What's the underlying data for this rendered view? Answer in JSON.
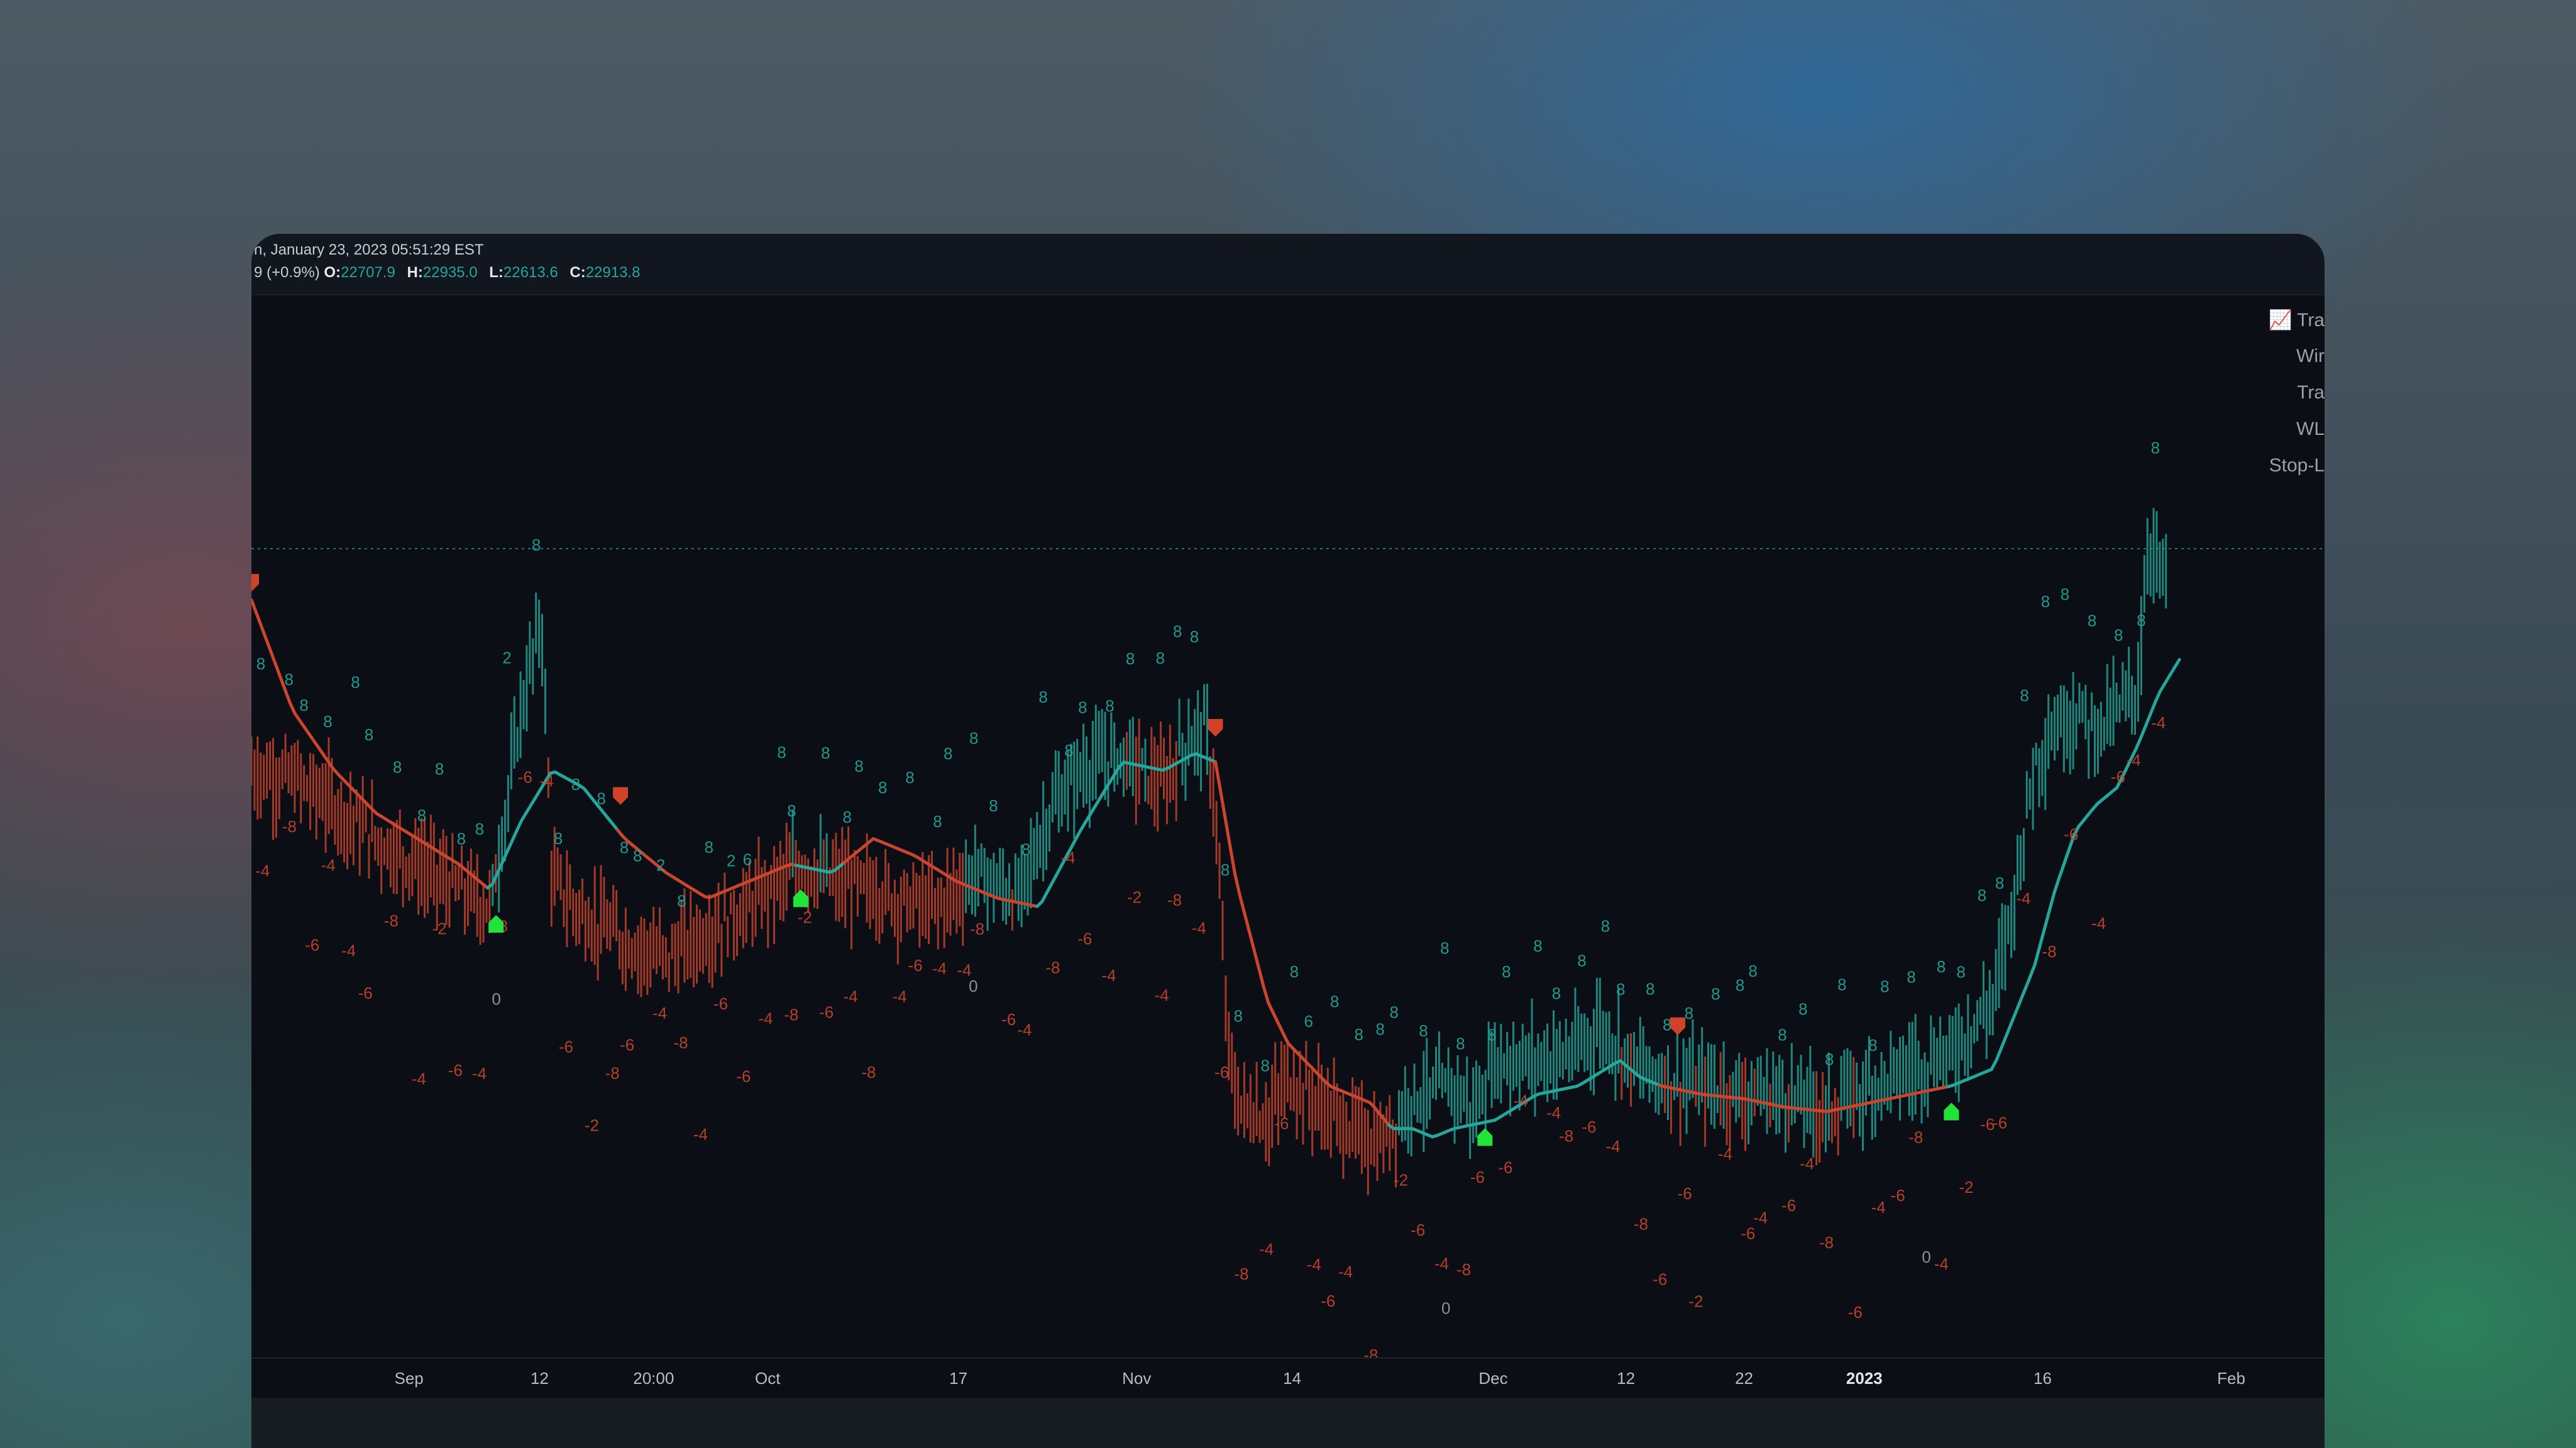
{
  "legend": {
    "date_text": "n, January 23, 2023 05:51:29 EST",
    "change_text": "9 (+0.9%)",
    "ohlc": [
      {
        "key": "O:",
        "value": "22707.9"
      },
      {
        "key": "H:",
        "value": "22935.0"
      },
      {
        "key": "L:",
        "value": "22613.6"
      },
      {
        "key": "C:",
        "value": "22913.8"
      }
    ]
  },
  "stats_panel": {
    "icon": "chart-increasing-icon",
    "rows": [
      "Tra",
      "Wir",
      "Tra",
      "WL",
      "Stop-L"
    ]
  },
  "colors": {
    "bull": "#26a69a",
    "bear": "#c9452f",
    "buy_signal": "#22e33a",
    "sell_signal": "#d0432a",
    "background": "#0b0e14"
  },
  "chart_data": {
    "type": "line",
    "title": "",
    "x_ticks": [
      {
        "label": "Sep",
        "pos": 0.076
      },
      {
        "label": "12",
        "pos": 0.139
      },
      {
        "label": "20:00",
        "pos": 0.194
      },
      {
        "label": "Oct",
        "pos": 0.249
      },
      {
        "label": "17",
        "pos": 0.341
      },
      {
        "label": "Nov",
        "pos": 0.427
      },
      {
        "label": "14",
        "pos": 0.502
      },
      {
        "label": "Dec",
        "pos": 0.599
      },
      {
        "label": "12",
        "pos": 0.663
      },
      {
        "label": "22",
        "pos": 0.72
      },
      {
        "label": "2023",
        "pos": 0.778,
        "bold": true
      },
      {
        "label": "16",
        "pos": 0.864
      },
      {
        "label": "Feb",
        "pos": 0.955
      }
    ],
    "price_range": [
      14500,
      25200
    ],
    "reference_level": 23100,
    "price_path": [
      [
        0.0,
        20500
      ],
      [
        0.02,
        20400
      ],
      [
        0.04,
        20100
      ],
      [
        0.06,
        19700
      ],
      [
        0.08,
        19400
      ],
      [
        0.1,
        19100
      ],
      [
        0.115,
        18900
      ],
      [
        0.12,
        19600
      ],
      [
        0.13,
        21200
      ],
      [
        0.14,
        22300
      ],
      [
        0.145,
        19200
      ],
      [
        0.16,
        18800
      ],
      [
        0.18,
        18500
      ],
      [
        0.2,
        18300
      ],
      [
        0.22,
        18600
      ],
      [
        0.24,
        18900
      ],
      [
        0.25,
        19100
      ],
      [
        0.265,
        19400
      ],
      [
        0.28,
        19200
      ],
      [
        0.3,
        19100
      ],
      [
        0.31,
        19000
      ],
      [
        0.33,
        18900
      ],
      [
        0.35,
        19300
      ],
      [
        0.37,
        19000
      ],
      [
        0.385,
        20000
      ],
      [
        0.4,
        20500
      ],
      [
        0.42,
        20700
      ],
      [
        0.44,
        20300
      ],
      [
        0.45,
        20800
      ],
      [
        0.46,
        21000
      ],
      [
        0.465,
        20100
      ],
      [
        0.47,
        17600
      ],
      [
        0.475,
        16600
      ],
      [
        0.49,
        16400
      ],
      [
        0.5,
        16900
      ],
      [
        0.51,
        16700
      ],
      [
        0.53,
        16300
      ],
      [
        0.545,
        16100
      ],
      [
        0.55,
        16300
      ],
      [
        0.56,
        16700
      ],
      [
        0.57,
        16700
      ],
      [
        0.58,
        16800
      ],
      [
        0.59,
        16500
      ],
      [
        0.6,
        17100
      ],
      [
        0.62,
        17100
      ],
      [
        0.64,
        17200
      ],
      [
        0.65,
        17500
      ],
      [
        0.67,
        17000
      ],
      [
        0.68,
        16900
      ],
      [
        0.7,
        16800
      ],
      [
        0.72,
        16700
      ],
      [
        0.74,
        16700
      ],
      [
        0.76,
        16500
      ],
      [
        0.78,
        16800
      ],
      [
        0.8,
        17000
      ],
      [
        0.82,
        17200
      ],
      [
        0.84,
        17800
      ],
      [
        0.85,
        19000
      ],
      [
        0.86,
        20600
      ],
      [
        0.87,
        21000
      ],
      [
        0.88,
        21200
      ],
      [
        0.89,
        21000
      ],
      [
        0.9,
        21200
      ],
      [
        0.91,
        21500
      ],
      [
        0.915,
        23200
      ],
      [
        0.92,
        22900
      ],
      [
        0.925,
        22700
      ]
    ],
    "trend_path": [
      [
        0.0,
        22500
      ],
      [
        0.02,
        21200
      ],
      [
        0.04,
        20500
      ],
      [
        0.06,
        20000
      ],
      [
        0.08,
        19700
      ],
      [
        0.1,
        19400
      ],
      [
        0.115,
        19100
      ],
      [
        0.13,
        19900
      ],
      [
        0.145,
        20500
      ],
      [
        0.16,
        20300
      ],
      [
        0.18,
        19700
      ],
      [
        0.2,
        19300
      ],
      [
        0.22,
        19000
      ],
      [
        0.24,
        19200
      ],
      [
        0.26,
        19400
      ],
      [
        0.28,
        19300
      ],
      [
        0.3,
        19700
      ],
      [
        0.32,
        19500
      ],
      [
        0.34,
        19200
      ],
      [
        0.36,
        19000
      ],
      [
        0.38,
        18900
      ],
      [
        0.4,
        19800
      ],
      [
        0.42,
        20600
      ],
      [
        0.44,
        20500
      ],
      [
        0.455,
        20700
      ],
      [
        0.465,
        20600
      ],
      [
        0.475,
        19200
      ],
      [
        0.49,
        17800
      ],
      [
        0.5,
        17300
      ],
      [
        0.52,
        16800
      ],
      [
        0.54,
        16600
      ],
      [
        0.55,
        16300
      ],
      [
        0.56,
        16300
      ],
      [
        0.57,
        16200
      ],
      [
        0.58,
        16300
      ],
      [
        0.6,
        16400
      ],
      [
        0.62,
        16700
      ],
      [
        0.64,
        16800
      ],
      [
        0.66,
        17100
      ],
      [
        0.67,
        16900
      ],
      [
        0.68,
        16800
      ],
      [
        0.7,
        16700
      ],
      [
        0.72,
        16650
      ],
      [
        0.74,
        16550
      ],
      [
        0.76,
        16500
      ],
      [
        0.78,
        16600
      ],
      [
        0.8,
        16700
      ],
      [
        0.82,
        16800
      ],
      [
        0.84,
        17000
      ],
      [
        0.86,
        18200
      ],
      [
        0.87,
        19100
      ],
      [
        0.88,
        19800
      ],
      [
        0.89,
        20100
      ],
      [
        0.9,
        20300
      ],
      [
        0.91,
        20800
      ],
      [
        0.92,
        21400
      ],
      [
        0.93,
        21800
      ]
    ],
    "trend_color_segments": [
      {
        "from": 0.0,
        "to": 0.115,
        "color": "bear"
      },
      {
        "from": 0.115,
        "to": 0.178,
        "color": "bull"
      },
      {
        "from": 0.178,
        "to": 0.265,
        "color": "bear"
      },
      {
        "from": 0.265,
        "to": 0.287,
        "color": "bull"
      },
      {
        "from": 0.287,
        "to": 0.38,
        "color": "bear"
      },
      {
        "from": 0.38,
        "to": 0.465,
        "color": "bull"
      },
      {
        "from": 0.465,
        "to": 0.55,
        "color": "bear"
      },
      {
        "from": 0.55,
        "to": 0.68,
        "color": "bull"
      },
      {
        "from": 0.68,
        "to": 0.82,
        "color": "bear"
      },
      {
        "from": 0.82,
        "to": 0.94,
        "color": "bull"
      }
    ],
    "signals": [
      {
        "type": "sell",
        "pos": 0.0,
        "price": 22700
      },
      {
        "type": "buy",
        "pos": 0.118,
        "price": 18700
      },
      {
        "type": "sell",
        "pos": 0.178,
        "price": 20200
      },
      {
        "type": "buy",
        "pos": 0.265,
        "price": 19000
      },
      {
        "type": "sell",
        "pos": 0.465,
        "price": 21000
      },
      {
        "type": "buy",
        "pos": 0.595,
        "price": 16200
      },
      {
        "type": "sell",
        "pos": 0.688,
        "price": 17500
      },
      {
        "type": "buy",
        "pos": 0.82,
        "price": 16500
      }
    ],
    "bull_labels": [
      "8",
      "8",
      "8",
      "8",
      "8",
      "8",
      "8",
      "8",
      "8",
      "8",
      "8",
      "2",
      "8",
      "8",
      "8",
      "8",
      "8",
      "8",
      "2",
      "8",
      "8",
      "2",
      "6",
      "8",
      "8",
      "8",
      "8",
      "8",
      "8",
      "8",
      "8",
      "8",
      "8",
      "8",
      "8",
      "8",
      "8",
      "8",
      "8",
      "8",
      "8",
      "8",
      "8",
      "8",
      "8",
      "8",
      "8",
      "6",
      "8",
      "8",
      "8",
      "8",
      "8",
      "8",
      "8",
      "8",
      "8",
      "8",
      "8",
      "8",
      "8",
      "8",
      "8",
      "8",
      "8",
      "8",
      "8",
      "8",
      "8",
      "8",
      "8",
      "8",
      "8",
      "8",
      "8",
      "8",
      "8",
      "8",
      "8",
      "8",
      "8",
      "8",
      "8",
      "8",
      "8",
      "8"
    ],
    "bear_labels": [
      "-4",
      "-8",
      "-6",
      "-4",
      "-4",
      "-6",
      "-8",
      "-4",
      "-2",
      "-6",
      "-4",
      "-8",
      "-6",
      "-4",
      "-6",
      "-2",
      "-8",
      "-6",
      "-4",
      "-8",
      "-4",
      "-6",
      "-6",
      "-4",
      "-8",
      "-2",
      "-6",
      "-4",
      "-8",
      "-4",
      "-6",
      "-4",
      "-4",
      "-8",
      "-6",
      "-4",
      "-8",
      "-4",
      "-6",
      "-4",
      "-2",
      "-4",
      "-8",
      "-4",
      "-6",
      "-8",
      "-4",
      "-6",
      "-4",
      "-6",
      "-4",
      "-8",
      "-2",
      "-6",
      "-4",
      "-8",
      "-6",
      "-6",
      "-4",
      "-4",
      "-8",
      "-6",
      "-4",
      "-8",
      "-6",
      "-6",
      "-2",
      "-4",
      "-6",
      "-4",
      "-6",
      "-4",
      "-8",
      "-6",
      "-4",
      "-6",
      "-8",
      "-4",
      "-2",
      "-6",
      "-6",
      "-4",
      "-8",
      "-6",
      "-4",
      "-6",
      "-4",
      "-4"
    ],
    "neutral_labels": [
      "0",
      "0",
      "0",
      "0"
    ]
  }
}
